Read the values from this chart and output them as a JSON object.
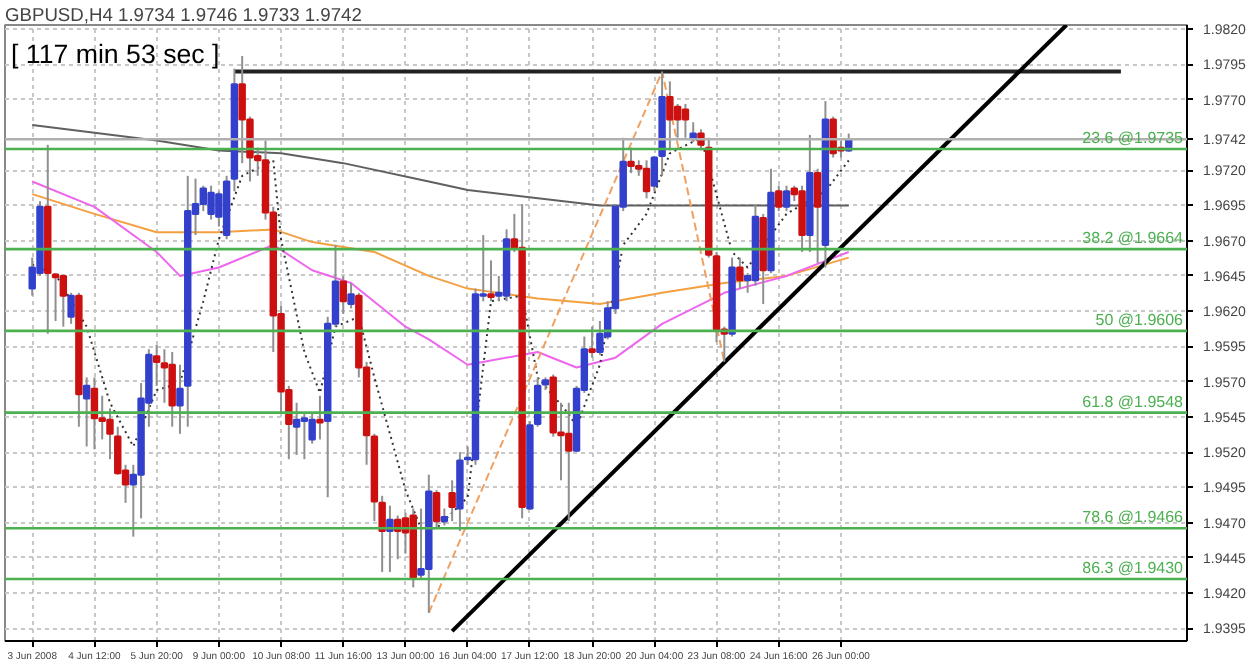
{
  "chart_data": {
    "type": "candlestick",
    "title": "GBPUSD,H4 1.9734 1.9746 1.9733 1.9742",
    "annotations": [
      "[ 117 min 53 sec ]"
    ],
    "categories": [
      "3 Jun 2008",
      null,
      null,
      null,
      null,
      null,
      null,
      null,
      "4 Jun 12:00",
      null,
      null,
      null,
      null,
      null,
      null,
      null,
      "5 Jun 20:00",
      null,
      null,
      null,
      null,
      null,
      null,
      null,
      "9 Jun 00:00",
      null,
      null,
      null,
      null,
      null,
      null,
      null,
      "10 Jun 08:00",
      null,
      null,
      null,
      null,
      null,
      null,
      null,
      "11 Jun 16:00",
      null,
      null,
      null,
      null,
      null,
      null,
      null,
      "13 Jun 00:00",
      null,
      null,
      null,
      null,
      null,
      null,
      null,
      "16 Jun 04:00",
      null,
      null,
      null,
      null,
      null,
      null,
      null,
      "17 Jun 12:00",
      null,
      null,
      null,
      null,
      null,
      null,
      null,
      "18 Jun 20:00",
      null,
      null,
      null,
      null,
      null,
      null,
      null,
      "20 Jun 04:00",
      null,
      null,
      null,
      null,
      null,
      null,
      null,
      "23 Jun 08:00",
      null,
      null,
      null,
      null,
      null,
      null,
      null,
      "24 Jun 16:00",
      null,
      null,
      null,
      null,
      null,
      null,
      null,
      "26 Jun 00:00",
      null,
      null,
      null,
      null,
      null,
      null,
      null,
      null,
      null,
      null,
      null,
      null,
      null,
      null,
      null,
      null,
      null,
      null,
      null,
      null,
      null,
      null,
      null,
      null,
      null,
      null,
      null,
      null,
      null,
      null,
      null,
      null,
      null,
      null,
      null,
      null,
      null,
      null,
      null,
      null,
      null,
      null,
      null,
      null
    ],
    "ohlc": [
      [
        1.9636,
        1.9658,
        1.9631,
        1.9651
      ],
      [
        1.9647,
        1.9698,
        1.9645,
        1.9694
      ],
      [
        1.9694,
        1.9738,
        1.9604,
        1.9647
      ],
      [
        1.9646,
        1.9647,
        1.9613,
        1.9644
      ],
      [
        1.9645,
        1.9646,
        1.9609,
        1.9631
      ],
      [
        1.9616,
        1.9633,
        1.9611,
        1.9631
      ],
      [
        1.9631,
        1.9633,
        1.9538,
        1.9561
      ],
      [
        1.9558,
        1.9573,
        1.9524,
        1.9567
      ],
      [
        1.9565,
        1.9573,
        1.9522,
        1.9544
      ],
      [
        1.9544,
        1.956,
        1.9529,
        1.9542
      ],
      [
        1.9543,
        1.9551,
        1.9515,
        1.9533
      ],
      [
        1.9531,
        1.9538,
        1.9504,
        1.9505
      ],
      [
        1.9507,
        1.9511,
        1.9484,
        1.9497
      ],
      [
        1.9497,
        1.9511,
        1.946,
        1.9504
      ],
      [
        1.9504,
        1.9569,
        1.9473,
        1.9558
      ],
      [
        1.9555,
        1.9593,
        1.9538,
        1.9589
      ],
      [
        1.9588,
        1.9596,
        1.9567,
        1.9584
      ],
      [
        1.9583,
        1.9593,
        1.9555,
        1.958
      ],
      [
        1.9582,
        1.9591,
        1.9538,
        1.9553
      ],
      [
        1.9553,
        1.9582,
        1.9533,
        1.9565
      ],
      [
        1.9567,
        1.9716,
        1.9538,
        1.9691
      ],
      [
        1.9689,
        1.9714,
        1.9674,
        1.9696
      ],
      [
        1.9696,
        1.9709,
        1.9691,
        1.9707
      ],
      [
        1.9689,
        1.9709,
        1.9685,
        1.9704
      ],
      [
        1.9687,
        1.9705,
        1.968,
        1.9703
      ],
      [
        1.9674,
        1.9716,
        1.9671,
        1.9712
      ],
      [
        1.9714,
        1.9792,
        1.9705,
        1.9781
      ],
      [
        1.9781,
        1.9801,
        1.9725,
        1.9756
      ],
      [
        1.9756,
        1.9758,
        1.9712,
        1.9729
      ],
      [
        1.973,
        1.9736,
        1.9716,
        1.9727
      ],
      [
        1.9727,
        1.9741,
        1.9685,
        1.969
      ],
      [
        1.969,
        1.9694,
        1.9591,
        1.9617
      ],
      [
        1.9618,
        1.9624,
        1.9547,
        1.9563
      ],
      [
        1.9564,
        1.9567,
        1.9515,
        1.954
      ],
      [
        1.9538,
        1.9555,
        1.9518,
        1.9543
      ],
      [
        1.9542,
        1.9547,
        1.9515,
        1.9544
      ],
      [
        1.9529,
        1.9547,
        1.9526,
        1.9543
      ],
      [
        1.9543,
        1.956,
        1.9529,
        1.9541
      ],
      [
        1.9542,
        1.9616,
        1.9488,
        1.9611
      ],
      [
        1.9611,
        1.9667,
        1.9609,
        1.9641
      ],
      [
        1.9641,
        1.9645,
        1.9618,
        1.9627
      ],
      [
        1.9625,
        1.964,
        1.9622,
        1.9632
      ],
      [
        1.9631,
        1.9633,
        1.9573,
        1.958
      ],
      [
        1.958,
        1.9584,
        1.9511,
        1.9532
      ],
      [
        1.9531,
        1.9533,
        1.9471,
        1.9485
      ],
      [
        1.9484,
        1.9489,
        1.9435,
        1.9464
      ],
      [
        1.9464,
        1.9482,
        1.9435,
        1.9472
      ],
      [
        1.9472,
        1.9475,
        1.9444,
        1.9464
      ],
      [
        1.9473,
        1.9477,
        1.9448,
        1.9463
      ],
      [
        1.9475,
        1.948,
        1.9424,
        1.9431
      ],
      [
        1.9433,
        1.948,
        1.943,
        1.9437
      ],
      [
        1.9437,
        1.9504,
        1.9406,
        1.9492
      ],
      [
        1.9491,
        1.9493,
        1.9466,
        1.9471
      ],
      [
        1.9471,
        1.948,
        1.9468,
        1.9474
      ],
      [
        1.9491,
        1.95,
        1.9471,
        1.9481
      ],
      [
        1.948,
        1.952,
        1.9464,
        1.9514
      ],
      [
        1.9515,
        1.9524,
        1.9511,
        1.9516
      ],
      [
        1.9515,
        1.9636,
        1.9511,
        1.9632
      ],
      [
        1.9631,
        1.9674,
        1.9627,
        1.9632
      ],
      [
        1.9632,
        1.9656,
        1.9627,
        1.963
      ],
      [
        1.9631,
        1.9645,
        1.9627,
        1.9633
      ],
      [
        1.9631,
        1.9678,
        1.9627,
        1.9671
      ],
      [
        1.9671,
        1.9689,
        1.9662,
        1.9665
      ],
      [
        1.9665,
        1.9696,
        1.9473,
        1.9481
      ],
      [
        1.948,
        1.9542,
        1.9479,
        1.9539
      ],
      [
        1.954,
        1.9573,
        1.9538,
        1.9567
      ],
      [
        1.9568,
        1.9573,
        1.9564,
        1.9571
      ],
      [
        1.9573,
        1.9575,
        1.9531,
        1.9534
      ],
      [
        1.9534,
        1.9555,
        1.95,
        1.9532
      ],
      [
        1.9533,
        1.9555,
        1.9471,
        1.9521
      ],
      [
        1.9521,
        1.9567,
        1.952,
        1.9565
      ],
      [
        1.9564,
        1.9602,
        1.9562,
        1.9593
      ],
      [
        1.9593,
        1.9609,
        1.9587,
        1.9591
      ],
      [
        1.9591,
        1.9613,
        1.9589,
        1.9604
      ],
      [
        1.9602,
        1.9627,
        1.96,
        1.9622
      ],
      [
        1.9622,
        1.9696,
        1.9618,
        1.9694
      ],
      [
        1.9694,
        1.9743,
        1.9691,
        1.9726
      ],
      [
        1.9726,
        1.9736,
        1.9718,
        1.9723
      ],
      [
        1.9723,
        1.9727,
        1.9716,
        1.9721
      ],
      [
        1.9721,
        1.9727,
        1.97,
        1.9705
      ],
      [
        1.9709,
        1.973,
        1.9705,
        1.9729
      ],
      [
        1.973,
        1.979,
        1.9716,
        1.9772
      ],
      [
        1.9772,
        1.9783,
        1.9734,
        1.9756
      ],
      [
        1.9765,
        1.9767,
        1.9743,
        1.9756
      ],
      [
        1.9763,
        1.9767,
        1.9743,
        1.9756
      ],
      [
        1.9742,
        1.9754,
        1.974,
        1.9746
      ],
      [
        1.9746,
        1.9749,
        1.9734,
        1.9738
      ],
      [
        1.9736,
        1.9743,
        1.9658,
        1.966
      ],
      [
        1.9659,
        1.9662,
        1.9598,
        1.9607
      ],
      [
        1.9607,
        1.9609,
        1.9584,
        1.9604
      ],
      [
        1.9604,
        1.9658,
        1.9602,
        1.9651
      ],
      [
        1.9651,
        1.9658,
        1.9636,
        1.9642
      ],
      [
        1.9642,
        1.9647,
        1.9633,
        1.9645
      ],
      [
        1.9642,
        1.9696,
        1.9638,
        1.9687
      ],
      [
        1.9686,
        1.9689,
        1.9625,
        1.9649
      ],
      [
        1.9649,
        1.9721,
        1.9647,
        1.9704
      ],
      [
        1.9705,
        1.9709,
        1.9691,
        1.9694
      ],
      [
        1.9694,
        1.9709,
        1.9691,
        1.9705
      ],
      [
        1.9707,
        1.9709,
        1.9698,
        1.9703
      ],
      [
        1.9705,
        1.9709,
        1.9662,
        1.9674
      ],
      [
        1.9674,
        1.9745,
        1.9662,
        1.9718
      ],
      [
        1.9718,
        1.9721,
        1.9654,
        1.9694
      ],
      [
        1.9667,
        1.9769,
        1.9651,
        1.9756
      ],
      [
        1.9756,
        1.9758,
        1.9729,
        1.9732
      ],
      [
        1.9736,
        1.9741,
        1.9729,
        1.9734
      ],
      [
        1.9734,
        1.9746,
        1.9733,
        1.9742
      ],
      null,
      null,
      null,
      null,
      null,
      null,
      null,
      null,
      null,
      null,
      null,
      null,
      null,
      null,
      null,
      null,
      null,
      null,
      null,
      null,
      null,
      null,
      null,
      null,
      null,
      null,
      null,
      null,
      null,
      null,
      null,
      null,
      null,
      null,
      null,
      null,
      null,
      null,
      null,
      null,
      null,
      null,
      null
    ],
    "series": [
      {
        "type": "line",
        "color": "#606060",
        "line_style": "solid",
        "values": [
          1.9752,
          null,
          null,
          null,
          null,
          null,
          null,
          null,
          null,
          null,
          null,
          null,
          null,
          null,
          null,
          null,
          1.9741,
          null,
          null,
          null,
          null,
          null,
          null,
          null,
          1.9734,
          null,
          null,
          null,
          null,
          null,
          null,
          null,
          1.9732,
          null,
          null,
          null,
          null,
          null,
          null,
          null,
          1.9725,
          null,
          null,
          null,
          null,
          null,
          null,
          null,
          null,
          null,
          null,
          1.9712,
          null,
          null,
          null,
          null,
          1.9706,
          null,
          null,
          null,
          null,
          null,
          null,
          null,
          null,
          null,
          null,
          null,
          null,
          null,
          null,
          null,
          null,
          1.9695,
          null,
          null,
          null,
          null,
          null,
          null,
          null,
          1.9695,
          null,
          null,
          null,
          null,
          null,
          null,
          null,
          null,
          null,
          null,
          null,
          null,
          null,
          null,
          null,
          1.9695,
          null,
          null,
          null,
          null,
          null,
          null,
          null,
          1.9695,
          null,
          null,
          null,
          null,
          null,
          null,
          null,
          null,
          null,
          null,
          null,
          null,
          null,
          null,
          null,
          null,
          null,
          null,
          null,
          null,
          null,
          null,
          null,
          null,
          null,
          null,
          null,
          null,
          null,
          null,
          null,
          null,
          null,
          null,
          null,
          null,
          null,
          null,
          null,
          null,
          null,
          null,
          null
        ]
      },
      {
        "type": "line",
        "color": "#f5a040",
        "line_style": "solid",
        "values": [
          1.9703,
          null,
          null,
          null,
          null,
          null,
          null,
          null,
          1.9689,
          null,
          null,
          null,
          null,
          null,
          null,
          null,
          1.9676,
          null,
          null,
          null,
          null,
          null,
          null,
          null,
          1.9676,
          null,
          null,
          null,
          null,
          null,
          null,
          1.9678,
          null,
          null,
          null,
          null,
          1.9669,
          null,
          null,
          null,
          null,
          null,
          null,
          null,
          1.9662,
          null,
          null,
          null,
          null,
          null,
          null,
          1.9645,
          null,
          null,
          null,
          null,
          1.9636,
          null,
          null,
          null,
          null,
          null,
          null,
          null,
          null,
          1.9629,
          null,
          null,
          null,
          null,
          null,
          null,
          null,
          1.9625,
          null,
          null,
          null,
          null,
          null,
          null,
          null,
          1.9633,
          null,
          null,
          null,
          null,
          null,
          null,
          null,
          1.964,
          null,
          null,
          null,
          null,
          null,
          null,
          null,
          1.9645,
          null,
          null,
          null,
          null,
          null,
          null,
          null,
          1.9658,
          null,
          null,
          null,
          null,
          null,
          null,
          null,
          null,
          null,
          null,
          null,
          null,
          null,
          null,
          null,
          null,
          null,
          null,
          null,
          null,
          null,
          null,
          null,
          null,
          null,
          null,
          null,
          null,
          null,
          null,
          null,
          null,
          null,
          null,
          null,
          null,
          null,
          null,
          null,
          null,
          null,
          null,
          null
        ]
      },
      {
        "type": "line",
        "color": "#ee66ee",
        "line_style": "solid",
        "values": [
          1.9712,
          null,
          null,
          null,
          null,
          null,
          null,
          null,
          1.9694,
          null,
          null,
          null,
          null,
          null,
          null,
          null,
          1.9662,
          null,
          null,
          1.9645,
          null,
          null,
          null,
          null,
          1.9651,
          null,
          null,
          null,
          null,
          null,
          null,
          1.9667,
          null,
          null,
          null,
          null,
          1.9649,
          null,
          null,
          null,
          null,
          1.964,
          null,
          null,
          null,
          null,
          null,
          null,
          1.9609,
          null,
          null,
          1.96,
          null,
          null,
          null,
          null,
          1.9582,
          null,
          null,
          null,
          null,
          null,
          null,
          null,
          null,
          1.9591,
          null,
          null,
          null,
          null,
          1.958,
          null,
          null,
          null,
          null,
          1.9587,
          null,
          null,
          null,
          null,
          null,
          1.9611,
          null,
          null,
          null,
          null,
          null,
          null,
          null,
          1.9633,
          null,
          null,
          null,
          null,
          null,
          null,
          null,
          1.9645,
          null,
          null,
          null,
          null,
          null,
          null,
          null,
          1.9662,
          null,
          null,
          null,
          null,
          null,
          null,
          null,
          null,
          null,
          null,
          null,
          null,
          null,
          null,
          null,
          null,
          null,
          null,
          null,
          null,
          null,
          null,
          null,
          null,
          null,
          null,
          null,
          null,
          null,
          null,
          null,
          null,
          null,
          null,
          null,
          null,
          null,
          null,
          null,
          null,
          null,
          null,
          null
        ]
      },
      {
        "type": "line",
        "color": "#333333",
        "line_style": "dotted",
        "values": [
          1.9653,
          null,
          null,
          1.9646,
          null,
          null,
          null,
          1.9609,
          null,
          null,
          1.9555,
          null,
          null,
          1.9524,
          null,
          null,
          1.9564,
          null,
          null,
          1.9569,
          null,
          null,
          1.9627,
          null,
          1.9671,
          null,
          null,
          1.9716,
          null,
          null,
          null,
          1.9727,
          1.9671,
          null,
          null,
          1.9591,
          null,
          1.9562,
          null,
          1.9609,
          null,
          null,
          1.9616,
          null,
          1.9573,
          null,
          null,
          null,
          1.9493,
          null,
          1.9466,
          null,
          1.9466,
          null,
          null,
          null,
          1.9488,
          null,
          null,
          1.9627,
          null,
          null,
          null,
          1.9631,
          null,
          1.9573,
          null,
          null,
          null,
          1.9547,
          1.9538,
          null,
          null,
          1.9582,
          null,
          null,
          1.9667,
          null,
          null,
          1.9689,
          null,
          null,
          1.9732,
          null,
          null,
          null,
          1.9743,
          null,
          null,
          null,
          1.9662,
          null,
          1.9651,
          null,
          null,
          null,
          null,
          1.9689,
          null,
          null,
          null,
          null,
          1.9705,
          null,
          null,
          1.9727,
          null,
          null,
          null,
          null,
          null,
          null,
          null,
          null,
          null,
          null,
          null,
          null,
          null,
          null,
          null,
          null,
          null,
          null,
          null,
          null,
          null,
          null,
          null,
          null,
          null,
          null,
          null,
          null,
          null,
          null,
          null,
          null,
          null,
          null,
          null,
          null,
          null,
          null,
          null,
          null,
          null,
          null,
          null
        ]
      },
      {
        "type": "line",
        "color": "#f0a060",
        "line_style": "dashed",
        "values": [
          null,
          null,
          null,
          null,
          null,
          null,
          null,
          null,
          null,
          null,
          null,
          null,
          null,
          null,
          null,
          null,
          null,
          null,
          null,
          null,
          null,
          null,
          null,
          null,
          null,
          null,
          null,
          null,
          null,
          null,
          null,
          null,
          null,
          null,
          null,
          null,
          null,
          null,
          null,
          null,
          null,
          null,
          null,
          null,
          null,
          null,
          null,
          null,
          null,
          null,
          null,
          1.9406,
          null,
          null,
          null,
          null,
          null,
          null,
          null,
          null,
          null,
          null,
          null,
          null,
          null,
          null,
          null,
          null,
          null,
          null,
          null,
          null,
          null,
          null,
          null,
          null,
          null,
          null,
          null,
          null,
          null,
          1.979,
          null,
          null,
          null,
          null,
          null,
          null,
          null,
          1.9584,
          null,
          null,
          null,
          null,
          null,
          null,
          null,
          null,
          null,
          null,
          null,
          null,
          null,
          null,
          null,
          null,
          null,
          null,
          null,
          null,
          null,
          null,
          null,
          null,
          null,
          null,
          null,
          null,
          null,
          null,
          null,
          null,
          null,
          null,
          null,
          null,
          null,
          null,
          null,
          null,
          null,
          null,
          null,
          null,
          null,
          null,
          null,
          null,
          null,
          null,
          null,
          null,
          null,
          null,
          null,
          null,
          null,
          null,
          null
        ]
      },
      {
        "type": "line",
        "color": "#222222",
        "line_style": "solid",
        "values": [
          null,
          null,
          null,
          null,
          null,
          null,
          null,
          null,
          null,
          null,
          null,
          null,
          null,
          null,
          null,
          null,
          null,
          null,
          null,
          null,
          null,
          null,
          null,
          null,
          null,
          null,
          1.979,
          null,
          null,
          null,
          null,
          null,
          null,
          null,
          null,
          null,
          null,
          null,
          null,
          null,
          null,
          null,
          null,
          null,
          null,
          null,
          null,
          null,
          null,
          null,
          null,
          null,
          null,
          null,
          null,
          null,
          null,
          null,
          null,
          null,
          null,
          null,
          null,
          null,
          null,
          null,
          null,
          null,
          null,
          null,
          null,
          null,
          null,
          null,
          null,
          null,
          null,
          null,
          null,
          null,
          null,
          null,
          null,
          null,
          null,
          null,
          null,
          null,
          null,
          null,
          null,
          null,
          null,
          null,
          null,
          null,
          null,
          null,
          null,
          null,
          null,
          null,
          null,
          null,
          null,
          null,
          null,
          null,
          null,
          null,
          null,
          null,
          null,
          null,
          null,
          null,
          null,
          null,
          null,
          null,
          null,
          null,
          null,
          null,
          null,
          null,
          null,
          null,
          null,
          null,
          null,
          null,
          null,
          null,
          null,
          null,
          null,
          null,
          null,
          null,
          1.979,
          null,
          null,
          null,
          null,
          null,
          null,
          null,
          null
        ]
      },
      {
        "type": "line",
        "color": "#000000",
        "line_style": "solid",
        "values": [
          null,
          null,
          null,
          null,
          null,
          null,
          null,
          null,
          null,
          null,
          null,
          null,
          null,
          null,
          null,
          null,
          null,
          null,
          null,
          null,
          null,
          null,
          null,
          null,
          null,
          null,
          null,
          null,
          null,
          null,
          null,
          null,
          null,
          null,
          null,
          null,
          null,
          null,
          null,
          null,
          null,
          null,
          null,
          null,
          null,
          null,
          null,
          null,
          null,
          null,
          null,
          null,
          null,
          null,
          1.9393,
          null,
          null,
          null,
          null,
          null,
          null,
          null,
          null,
          null,
          null,
          null,
          null,
          null,
          null,
          null,
          null,
          null,
          null,
          null,
          null,
          null,
          null,
          null,
          null,
          null,
          null,
          null,
          null,
          null,
          null,
          null,
          null,
          null,
          null,
          null,
          null,
          null,
          null,
          null,
          null,
          null,
          null,
          null,
          null,
          null,
          null,
          null,
          null,
          null,
          null,
          null,
          null,
          null,
          null,
          null,
          null,
          null,
          null,
          null,
          null,
          null,
          null,
          null,
          null,
          null,
          null,
          null,
          null,
          null,
          null,
          null,
          null,
          null,
          null,
          null,
          null,
          null,
          null,
          1.9823,
          null,
          null,
          null,
          null,
          null,
          null,
          null,
          null,
          null,
          null,
          null,
          null,
          null,
          null,
          null
        ]
      }
    ],
    "ref_lines": [
      {
        "axis": "y",
        "value": 1.9735,
        "label": "23.6 @1.9735",
        "color": "#4caf50"
      },
      {
        "axis": "y",
        "value": 1.9664,
        "label": "38.2 @1.9664",
        "color": "#4caf50"
      },
      {
        "axis": "y",
        "value": 1.9606,
        "label": "50 @1.9606",
        "color": "#4caf50"
      },
      {
        "axis": "y",
        "value": 1.9548,
        "label": "61.8 @1.9548",
        "color": "#4caf50"
      },
      {
        "axis": "y",
        "value": 1.9466,
        "label": "78.6 @1.9466",
        "color": "#4caf50"
      },
      {
        "axis": "y",
        "value": 1.943,
        "label": "86.3 @1.9430",
        "color": "#4caf50"
      },
      {
        "axis": "y",
        "value": 1.9742,
        "color": "#b0b0b0"
      }
    ],
    "ylim": [
      1.9386,
      1.9823
    ],
    "yticks": [
      {
        "value": 1.9395,
        "label": "1.9395"
      },
      {
        "value": 1.942,
        "label": "1.9420"
      },
      {
        "value": 1.9445,
        "label": "1.9445"
      },
      {
        "value": 1.947,
        "label": "1.9470"
      },
      {
        "value": 1.9495,
        "label": "1.9495"
      },
      {
        "value": 1.952,
        "label": "1.9520"
      },
      {
        "value": 1.9545,
        "label": "1.9545"
      },
      {
        "value": 1.957,
        "label": "1.9570"
      },
      {
        "value": 1.9595,
        "label": "1.9595"
      },
      {
        "value": 1.962,
        "label": "1.9620"
      },
      {
        "value": 1.9645,
        "label": "1.9645"
      },
      {
        "value": 1.967,
        "label": "1.9670"
      },
      {
        "value": 1.9695,
        "label": "1.9695"
      },
      {
        "value": 1.972,
        "label": "1.9720"
      },
      {
        "value": 1.9742,
        "label": "1.9742"
      },
      {
        "value": 1.977,
        "label": "1.9770"
      },
      {
        "value": 1.9795,
        "label": "1.9795"
      },
      {
        "value": 1.982,
        "label": "1.9820"
      }
    ],
    "grid": true
  }
}
